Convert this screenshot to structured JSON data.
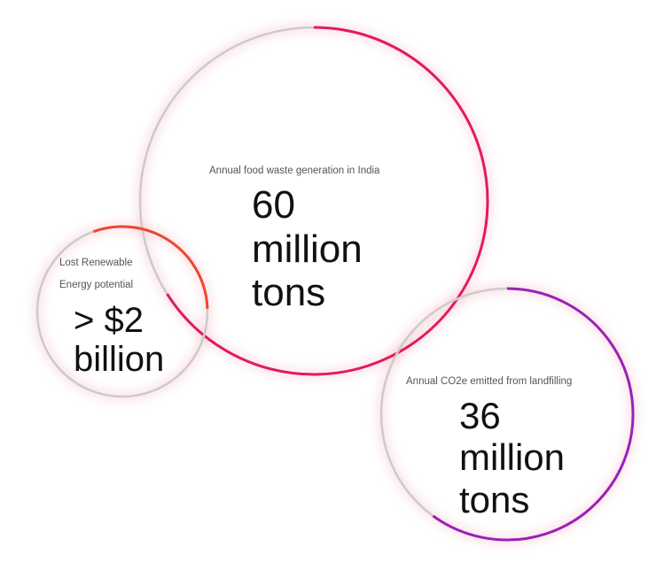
{
  "colors": {
    "track": "#cdcaca",
    "food_waste_arc": "#e21a5e",
    "energy_arc": "#f0452e",
    "co2_arc": "#9a21b8",
    "glow": "#f2a4b2"
  },
  "bubbles": [
    {
      "id": "food-waste",
      "caption": "Annual food waste generation in India",
      "value_lines": [
        "60",
        "million",
        "tons"
      ],
      "fill_fraction": 0.66
    },
    {
      "id": "energy",
      "caption_lines": [
        "Lost Renewable",
        "Energy potential"
      ],
      "value_lines": [
        "> $2",
        "billion"
      ],
      "fill_fraction": 0.3
    },
    {
      "id": "co2",
      "caption": "Annual CO2e emitted from landfilling",
      "value_lines": [
        "36",
        "million",
        "tons"
      ],
      "fill_fraction": 0.6
    }
  ]
}
